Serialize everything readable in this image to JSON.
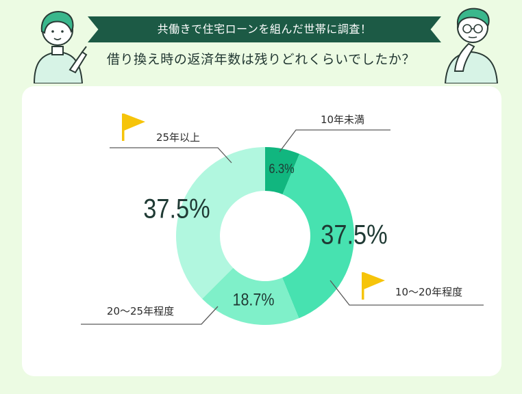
{
  "header": {
    "banner": "共働きで住宅ローンを組んだ世帯に調査！",
    "question": "借り換え時の返済年数は残りどれくらいでしたか？"
  },
  "colors": {
    "page_bg": "#ecfbe3",
    "banner_bg": "#1c5a45",
    "card_bg": "#ffffff",
    "flag": "#f6c40a",
    "leader_line": "#5a5a5a"
  },
  "icons": [
    "woman-pointing-illustration",
    "man-thinking-illustration",
    "flag-icon"
  ],
  "chart_data": {
    "type": "donut",
    "title": "借り換え時の返済年数は残りどれくらいでしたか？",
    "unit": "%",
    "start_angle": "12 o'clock, clockwise",
    "categories": [
      "10年未満",
      "10〜20年程度",
      "20〜25年程度",
      "25年以上"
    ],
    "values": [
      6.3,
      37.5,
      18.7,
      37.5
    ],
    "value_labels": [
      "6.3%",
      "37.5%",
      "18.7%",
      "37.5%"
    ],
    "colors": [
      "#11b67f",
      "#47e2b0",
      "#7ff0c9",
      "#b1f7df"
    ],
    "flagged": [
      false,
      true,
      false,
      true
    ]
  }
}
